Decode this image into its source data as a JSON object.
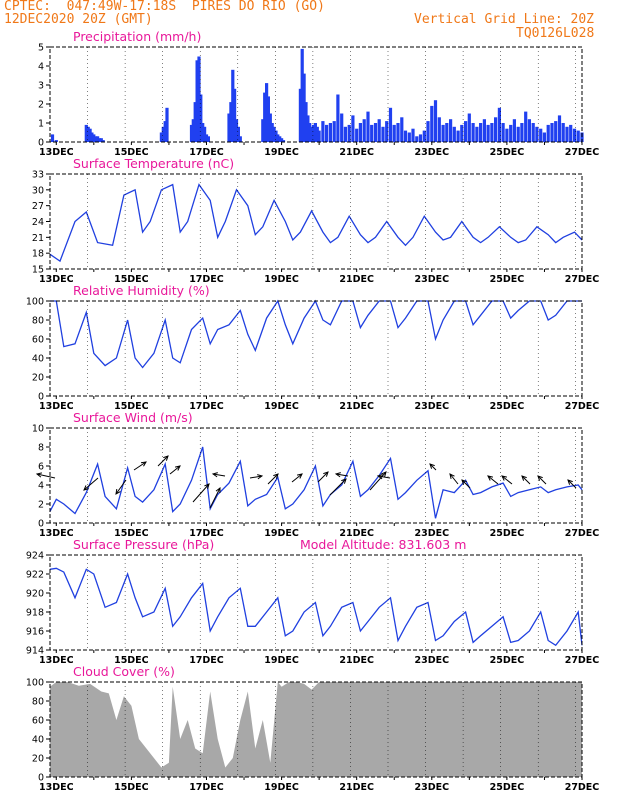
{
  "header": {
    "line1": "CPTEC:  047:49W-17:18S  PIRES DO RIO (GO)",
    "line2": "12DEC2020 20Z (GMT)",
    "grid_note": "Vertical Grid Line: 20Z",
    "model_id": "TQ0126L028"
  },
  "colors": {
    "header": "#f07818",
    "title": "#e8189a",
    "line": "#2040e0",
    "bar": "#2040f0",
    "cloud": "#a8a8a8"
  },
  "x_axis": {
    "start_day": 12.833,
    "end_day": 27.0,
    "labels": [
      "13DEC",
      "15DEC",
      "17DEC",
      "19DEC",
      "21DEC",
      "23DEC",
      "25DEC",
      "27DEC"
    ]
  },
  "chart_data": [
    {
      "type": "bar",
      "title": "Precipitation (mm/h)",
      "ylim": [
        0,
        5
      ],
      "yticks": [
        "0",
        "1",
        "2",
        "3",
        "4",
        "5"
      ],
      "series": [
        {
          "x": [
            12.9,
            13.0,
            13.8,
            13.85,
            13.9,
            13.95,
            14.0,
            14.05,
            14.1,
            14.15,
            14.2,
            14.25,
            15.8,
            15.85,
            15.9,
            15.95,
            16.6,
            16.65,
            16.7,
            16.75,
            16.8,
            16.85,
            16.9,
            16.95,
            17.0,
            17.05,
            17.6,
            17.65,
            17.7,
            17.75,
            17.8,
            17.85,
            17.9,
            18.5,
            18.55,
            18.6,
            18.65,
            18.7,
            18.75,
            18.8,
            18.85,
            18.9,
            18.95,
            19.0,
            19.05,
            19.5,
            19.55,
            19.6,
            19.65,
            19.7,
            19.75,
            19.8,
            19.85,
            19.9,
            19.95,
            20.0,
            20.1,
            20.2,
            20.3,
            20.4,
            20.5,
            20.6,
            20.7,
            20.8,
            20.9,
            21.0,
            21.1,
            21.2,
            21.3,
            21.4,
            21.5,
            21.6,
            21.7,
            21.8,
            21.9,
            22.0,
            22.1,
            22.2,
            22.3,
            22.4,
            22.5,
            22.6,
            22.7,
            22.8,
            22.9,
            23.0,
            23.1,
            23.2,
            23.3,
            23.4,
            23.5,
            23.6,
            23.7,
            23.8,
            23.9,
            24.0,
            24.1,
            24.2,
            24.3,
            24.4,
            24.5,
            24.6,
            24.7,
            24.8,
            24.9,
            25.0,
            25.1,
            25.2,
            25.3,
            25.4,
            25.5,
            25.6,
            25.7,
            25.8,
            25.9,
            26.0,
            26.1,
            26.2,
            26.3,
            26.4,
            26.5,
            26.6,
            26.7,
            26.8,
            26.9,
            27.0
          ],
          "values": [
            0.4,
            0.1,
            0.9,
            0.8,
            0.7,
            0.5,
            0.4,
            0.3,
            0.3,
            0.2,
            0.2,
            0.1,
            0.5,
            0.8,
            1.1,
            1.8,
            0.9,
            1.2,
            2.1,
            4.3,
            4.5,
            2.5,
            1.0,
            0.8,
            0.4,
            0.3,
            1.5,
            2.1,
            3.8,
            2.8,
            1.2,
            0.8,
            0.3,
            1.2,
            2.6,
            3.1,
            2.4,
            1.5,
            1.0,
            0.8,
            0.6,
            0.4,
            0.3,
            0.2,
            0.1,
            2.8,
            4.9,
            3.6,
            2.1,
            1.4,
            1.0,
            0.8,
            0.9,
            1.0,
            0.8,
            0.6,
            1.1,
            0.9,
            1.0,
            1.1,
            2.5,
            1.5,
            0.8,
            0.9,
            1.4,
            0.7,
            1.0,
            1.2,
            1.6,
            0.9,
            1.0,
            1.2,
            0.8,
            1.1,
            1.8,
            0.9,
            1.0,
            1.3,
            0.6,
            0.5,
            0.7,
            0.3,
            0.4,
            0.6,
            1.1,
            1.9,
            2.2,
            1.3,
            0.9,
            1.0,
            1.2,
            0.8,
            0.6,
            0.9,
            1.1,
            1.5,
            1.0,
            0.8,
            1.0,
            1.2,
            0.9,
            1.0,
            1.3,
            1.8,
            1.0,
            0.7,
            0.9,
            1.2,
            0.8,
            1.0,
            1.6,
            1.2,
            1.0,
            0.8,
            0.7,
            0.5,
            0.9,
            1.0,
            1.1,
            1.4,
            1.0,
            0.8,
            0.9,
            0.7,
            0.6,
            0.5
          ]
        }
      ]
    },
    {
      "type": "line",
      "title": "Surface Temperature (nC)",
      "ylim": [
        15,
        33
      ],
      "yticks": [
        "15",
        "18",
        "21",
        "24",
        "27",
        "30",
        "33"
      ],
      "series": [
        {
          "x": [
            12.83,
            13.1,
            13.5,
            13.8,
            14.1,
            14.5,
            14.8,
            15.1,
            15.3,
            15.5,
            15.8,
            16.1,
            16.3,
            16.5,
            16.8,
            17.1,
            17.3,
            17.5,
            17.8,
            18.1,
            18.3,
            18.5,
            18.8,
            19.1,
            19.3,
            19.5,
            19.8,
            20.1,
            20.3,
            20.5,
            20.8,
            21.1,
            21.3,
            21.5,
            21.8,
            22.1,
            22.3,
            22.5,
            22.8,
            23.1,
            23.3,
            23.5,
            23.8,
            24.1,
            24.3,
            24.5,
            24.8,
            25.1,
            25.3,
            25.5,
            25.8,
            26.1,
            26.3,
            26.5,
            26.8,
            27.0
          ],
          "values": [
            17.8,
            16.5,
            24,
            25.8,
            20,
            19.5,
            29,
            30,
            22,
            24,
            30,
            31,
            22,
            24,
            31,
            28,
            21,
            24,
            30,
            27,
            21.5,
            23,
            28,
            24,
            20.5,
            22,
            26,
            22,
            20,
            21,
            25,
            21.5,
            20,
            21,
            24,
            21,
            19.5,
            21,
            25,
            22,
            20.5,
            21,
            24,
            21,
            20,
            21,
            23,
            21,
            20,
            20.5,
            23,
            21.5,
            20,
            21,
            22,
            20.5
          ]
        }
      ]
    },
    {
      "type": "line",
      "title": "Relative Humidity (%)",
      "ylim": [
        0,
        100
      ],
      "yticks": [
        "0",
        "20",
        "40",
        "60",
        "80",
        "100"
      ],
      "series": [
        {
          "x": [
            12.83,
            13.0,
            13.2,
            13.5,
            13.8,
            14.0,
            14.3,
            14.6,
            14.9,
            15.1,
            15.3,
            15.6,
            15.9,
            16.1,
            16.3,
            16.6,
            16.9,
            17.1,
            17.3,
            17.6,
            17.9,
            18.1,
            18.3,
            18.6,
            18.9,
            19.1,
            19.3,
            19.6,
            19.9,
            20.1,
            20.3,
            20.6,
            20.9,
            21.1,
            21.3,
            21.6,
            21.9,
            22.1,
            22.3,
            22.6,
            22.9,
            23.1,
            23.3,
            23.6,
            23.9,
            24.1,
            24.3,
            24.6,
            24.9,
            25.1,
            25.3,
            25.6,
            25.9,
            26.1,
            26.3,
            26.6,
            26.9,
            27.0
          ],
          "values": [
            100,
            100,
            52,
            55,
            88,
            45,
            32,
            40,
            80,
            40,
            30,
            45,
            80,
            40,
            35,
            70,
            82,
            55,
            70,
            75,
            90,
            65,
            48,
            82,
            100,
            75,
            55,
            82,
            100,
            80,
            75,
            100,
            100,
            72,
            85,
            100,
            100,
            72,
            82,
            100,
            100,
            60,
            80,
            100,
            100,
            75,
            85,
            100,
            100,
            82,
            90,
            100,
            100,
            80,
            85,
            100,
            100,
            100
          ]
        }
      ]
    },
    {
      "type": "line",
      "title": "Surface Wind (m/s)",
      "ylim": [
        0,
        10
      ],
      "yticks": [
        "0",
        "2",
        "4",
        "6",
        "8",
        "10"
      ],
      "series": [
        {
          "x": [
            12.83,
            13.0,
            13.2,
            13.5,
            13.8,
            14.1,
            14.3,
            14.6,
            14.9,
            15.1,
            15.3,
            15.6,
            15.9,
            16.1,
            16.3,
            16.6,
            16.9,
            17.1,
            17.3,
            17.6,
            17.9,
            18.1,
            18.3,
            18.6,
            18.9,
            19.1,
            19.3,
            19.6,
            19.9,
            20.1,
            20.3,
            20.6,
            20.9,
            21.1,
            21.3,
            21.6,
            21.9,
            22.1,
            22.3,
            22.6,
            22.9,
            23.1,
            23.3,
            23.6,
            23.9,
            24.1,
            24.3,
            24.6,
            24.9,
            25.1,
            25.3,
            25.6,
            25.9,
            26.1,
            26.3,
            26.6,
            26.9,
            27.0
          ],
          "values": [
            1.2,
            2.5,
            2.0,
            1.0,
            3.2,
            6.2,
            2.8,
            1.5,
            5.8,
            2.8,
            2.2,
            3.5,
            6.2,
            1.2,
            2.0,
            4.5,
            8.0,
            1.5,
            3.0,
            4.2,
            6.5,
            1.8,
            2.5,
            3.0,
            4.8,
            1.5,
            2.0,
            3.5,
            6.0,
            1.8,
            3.0,
            4.0,
            6.5,
            2.8,
            3.5,
            5.0,
            6.8,
            2.5,
            3.2,
            4.5,
            5.5,
            0.5,
            3.5,
            3.2,
            4.5,
            3.0,
            3.2,
            3.8,
            4.2,
            2.8,
            3.2,
            3.5,
            3.8,
            3.2,
            3.5,
            3.8,
            4.0,
            3.5
          ]
        }
      ]
    },
    {
      "type": "line",
      "title": "Surface Pressure (hPa)",
      "annotation": "Model Altitude: 831.603 m",
      "ylim": [
        914,
        924
      ],
      "yticks": [
        "914",
        "916",
        "918",
        "920",
        "922",
        "924"
      ],
      "series": [
        {
          "x": [
            12.83,
            13.0,
            13.2,
            13.5,
            13.8,
            14.0,
            14.3,
            14.6,
            14.9,
            15.1,
            15.3,
            15.6,
            15.9,
            16.1,
            16.3,
            16.6,
            16.9,
            17.1,
            17.3,
            17.6,
            17.9,
            18.1,
            18.3,
            18.6,
            18.9,
            19.1,
            19.3,
            19.6,
            19.9,
            20.1,
            20.3,
            20.6,
            20.9,
            21.1,
            21.3,
            21.6,
            21.9,
            22.1,
            22.3,
            22.6,
            22.9,
            23.1,
            23.3,
            23.6,
            23.9,
            24.1,
            24.3,
            24.6,
            24.9,
            25.1,
            25.3,
            25.6,
            25.9,
            26.1,
            26.3,
            26.6,
            26.9,
            27.0
          ],
          "values": [
            922.5,
            922.6,
            922.2,
            919.5,
            922.5,
            922.0,
            918.5,
            919.0,
            922.0,
            919.5,
            917.5,
            918.0,
            920.5,
            916.5,
            917.5,
            919.5,
            921.0,
            916.0,
            917.5,
            919.5,
            920.5,
            916.5,
            916.5,
            918.0,
            919.5,
            915.5,
            916.0,
            918.0,
            919.0,
            915.5,
            916.5,
            918.5,
            919.0,
            916.0,
            917.0,
            918.5,
            919.5,
            915.0,
            916.5,
            918.5,
            919.0,
            915.0,
            915.5,
            917.0,
            918.0,
            914.8,
            915.5,
            916.5,
            917.5,
            914.8,
            915.0,
            916.0,
            918.0,
            915.0,
            914.5,
            916.0,
            918.0,
            914.5
          ]
        }
      ]
    },
    {
      "type": "area",
      "title": "Cloud Cover (%)",
      "ylim": [
        0,
        100
      ],
      "yticks": [
        "0",
        "20",
        "40",
        "60",
        "80",
        "100"
      ],
      "series": [
        {
          "x": [
            12.83,
            13.0,
            13.3,
            13.6,
            13.9,
            14.2,
            14.4,
            14.6,
            14.8,
            15.0,
            15.2,
            15.4,
            15.6,
            15.8,
            16.0,
            16.1,
            16.3,
            16.5,
            16.7,
            16.9,
            17.1,
            17.3,
            17.5,
            17.7,
            17.9,
            18.1,
            18.3,
            18.5,
            18.7,
            18.9,
            19.0,
            19.2,
            19.4,
            19.6,
            19.8,
            20.0,
            20.2,
            20.5,
            21.0,
            22.0,
            23.0,
            24.0,
            25.0,
            26.0,
            27.0
          ],
          "values": [
            95,
            100,
            100,
            96,
            98,
            90,
            88,
            60,
            85,
            75,
            40,
            30,
            20,
            10,
            15,
            95,
            40,
            60,
            30,
            25,
            90,
            40,
            10,
            20,
            60,
            90,
            30,
            60,
            15,
            100,
            95,
            100,
            100,
            98,
            92,
            100,
            100,
            100,
            100,
            100,
            100,
            100,
            100,
            100,
            100
          ]
        }
      ]
    }
  ]
}
